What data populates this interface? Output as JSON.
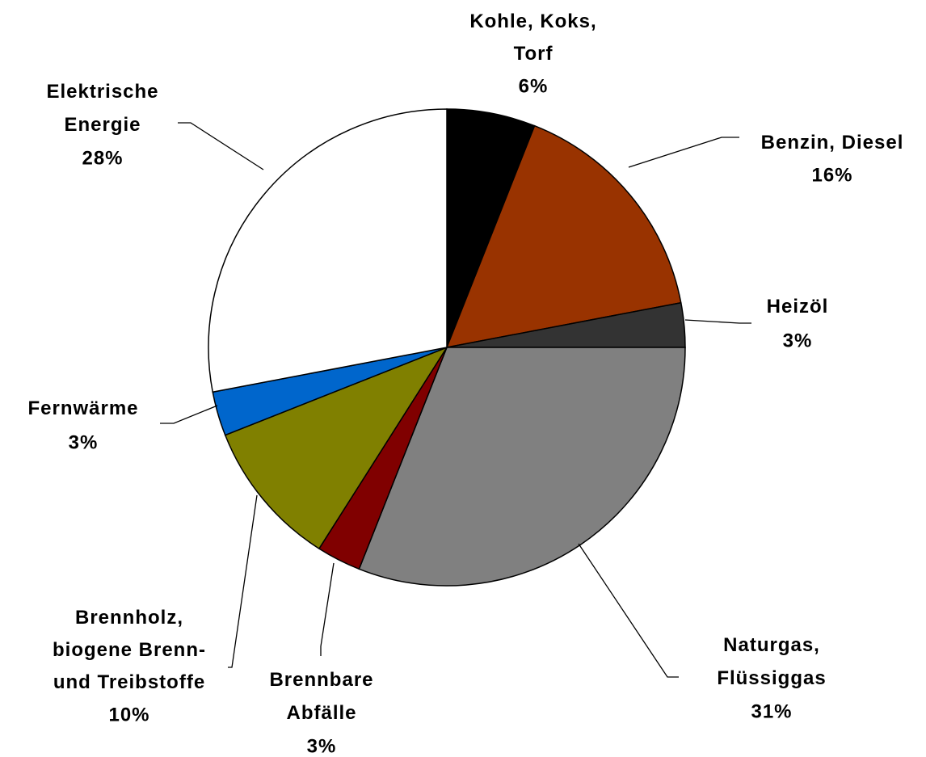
{
  "chart_data": {
    "type": "pie",
    "categories": [
      "Kohle, Koks,\nTorf",
      "Benzin, Diesel",
      "Heizöl",
      "Naturgas,\nFlüssiggas",
      "Brennbare\nAbfälle",
      "Brennholz,\nbiogene Brenn-\nund Treibstoffe",
      "Fernwärme",
      "Elektrische\nEnergie"
    ],
    "values": [
      6,
      16,
      3,
      31,
      3,
      10,
      3,
      28
    ],
    "value_labels": [
      "6%",
      "16%",
      "3%",
      "31%",
      "3%",
      "10%",
      "3%",
      "28%"
    ],
    "colors": [
      "#000000",
      "#993300",
      "#333333",
      "#808080",
      "#800000",
      "#808000",
      "#0066cc",
      "#ffffff"
    ]
  }
}
